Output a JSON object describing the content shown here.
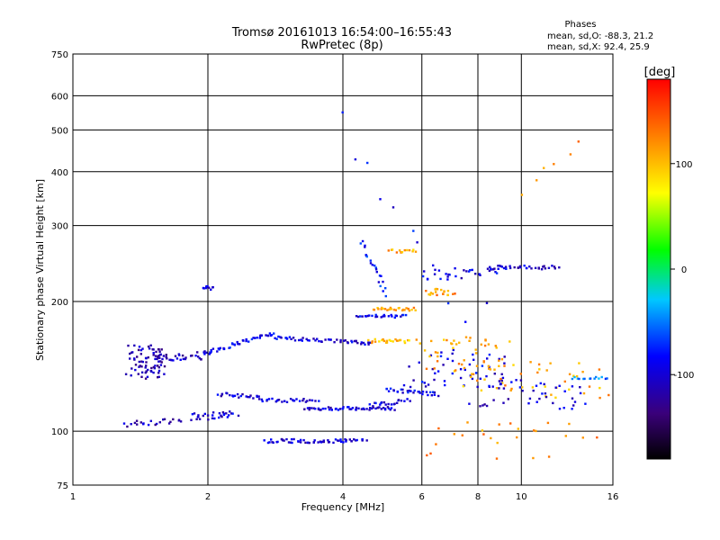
{
  "chart_data": {
    "type": "scatter",
    "title": "Tromsø 20161013 16:54:00–16:55:43",
    "subtitle": "RwPretec (8p)",
    "phases": {
      "heading": "Phases",
      "o_line": "mean, sd,O: -88.3, 21.2",
      "x_line": "mean, sd,X:  92.4, 25.9"
    },
    "xlabel": "Frequency [MHz]",
    "ylabel": "Stationary phase Virtual Height [km]",
    "x_scale": "log",
    "y_scale": "log",
    "xlim": [
      1,
      16
    ],
    "ylim": [
      75,
      750
    ],
    "x_ticks": [
      1,
      2,
      4,
      6,
      8,
      10,
      16
    ],
    "y_ticks": [
      75,
      100,
      200,
      300,
      400,
      500,
      600,
      750
    ],
    "grid": true,
    "colorbar": {
      "label": "[deg]",
      "vmin": -180,
      "vmax": 180,
      "ticks": [
        100,
        0,
        -100
      ]
    },
    "traces": [
      {
        "x": [
          1.35,
          1.6
        ],
        "y": [
          145,
          145
        ],
        "phase": -115,
        "count": 80,
        "jit_f": 0.045,
        "jit_h": 0.09
      },
      {
        "x": [
          1.3,
          1.75
        ],
        "y": [
          104,
          106
        ],
        "phase": -112,
        "count": 22,
        "jit_f": 0.02,
        "jit_h": 0.015
      },
      {
        "x": [
          1.55,
          2.0
        ],
        "y": [
          148,
          150
        ],
        "phase": -108,
        "count": 28,
        "jit_f": 0.02,
        "jit_h": 0.02
      },
      {
        "x": [
          1.85,
          2.3
        ],
        "y": [
          108,
          110
        ],
        "phase": -100,
        "count": 30,
        "jit_f": 0.02,
        "jit_h": 0.02
      },
      {
        "x": [
          1.95,
          2.05
        ],
        "y": [
          215,
          215
        ],
        "phase": -105,
        "count": 10,
        "jit_f": 0.006,
        "jit_h": 0.01
      },
      {
        "x": [
          1.95,
          2.8
        ],
        "y": [
          152,
          168
        ],
        "phase": -90,
        "count": 45,
        "jit_f": 0.012,
        "jit_h": 0.012
      },
      {
        "x": [
          2.1,
          2.6
        ],
        "y": [
          122,
          120
        ],
        "phase": -100,
        "count": 22,
        "jit_f": 0.01,
        "jit_h": 0.01
      },
      {
        "x": [
          2.6,
          3.5
        ],
        "y": [
          118,
          118
        ],
        "phase": -98,
        "count": 28,
        "jit_f": 0.01,
        "jit_h": 0.01
      },
      {
        "x": [
          2.8,
          3.8
        ],
        "y": [
          165,
          162
        ],
        "phase": -95,
        "count": 30,
        "jit_f": 0.01,
        "jit_h": 0.008
      },
      {
        "x": [
          2.7,
          4.5
        ],
        "y": [
          95,
          95
        ],
        "phase": -102,
        "count": 60,
        "jit_f": 0.012,
        "jit_h": 0.01
      },
      {
        "x": [
          3.3,
          5.2
        ],
        "y": [
          113,
          113
        ],
        "phase": -100,
        "count": 55,
        "jit_f": 0.01,
        "jit_h": 0.008
      },
      {
        "x": [
          3.9,
          4.6
        ],
        "y": [
          162,
          160
        ],
        "phase": -100,
        "count": 20,
        "jit_f": 0.008,
        "jit_h": 0.008
      },
      {
        "x": [
          4.3,
          5.5
        ],
        "y": [
          185,
          185
        ],
        "phase": -90,
        "count": 26,
        "jit_f": 0.008,
        "jit_h": 0.008
      },
      {
        "x": [
          4.6,
          5.6
        ],
        "y": [
          162,
          162
        ],
        "phase": 100,
        "count": 24,
        "jit_f": 0.01,
        "jit_h": 0.01
      },
      {
        "x": [
          4.7,
          5.8
        ],
        "y": [
          192,
          192
        ],
        "phase": 115,
        "count": 26,
        "jit_f": 0.01,
        "jit_h": 0.008
      },
      {
        "x": [
          5.1,
          5.8
        ],
        "y": [
          262,
          262
        ],
        "phase": 110,
        "count": 14,
        "jit_f": 0.01,
        "jit_h": 0.008
      },
      {
        "x": [
          4.4,
          5.0
        ],
        "y": [
          275,
          210
        ],
        "phase": -80,
        "count": 22,
        "jit_f": 0.01,
        "jit_h": 0.02
      },
      {
        "x": [
          4.6,
          5.6
        ],
        "y": [
          115,
          118
        ],
        "phase": -95,
        "count": 20,
        "jit_f": 0.01,
        "jit_h": 0.01
      },
      {
        "x": [
          5.0,
          6.5
        ],
        "y": [
          125,
          122
        ],
        "phase": -90,
        "count": 30,
        "jit_f": 0.01,
        "jit_h": 0.01
      },
      {
        "x": [
          6.2,
          7.0
        ],
        "y": [
          210,
          210
        ],
        "phase": 118,
        "count": 20,
        "jit_f": 0.015,
        "jit_h": 0.02
      },
      {
        "x": [
          6.0,
          9.0
        ],
        "y": [
          230,
          235
        ],
        "phase": -95,
        "count": 30,
        "jit_f": 0.02,
        "jit_h": 0.03
      },
      {
        "x": [
          8.5,
          12.0
        ],
        "y": [
          240,
          240
        ],
        "phase": -100,
        "count": 34,
        "jit_f": 0.012,
        "jit_h": 0.01
      },
      {
        "x": [
          5.6,
          9.5
        ],
        "y": [
          140,
          140
        ],
        "phase": -95,
        "count": 50,
        "jit_f": 0.05,
        "jit_h": 0.1
      },
      {
        "x": [
          6.0,
          9.0
        ],
        "y": [
          150,
          150
        ],
        "phase": 110,
        "count": 45,
        "jit_f": 0.05,
        "jit_h": 0.1
      },
      {
        "x": [
          7.5,
          15.0
        ],
        "y": [
          132,
          132
        ],
        "phase": 110,
        "count": 45,
        "jit_f": 0.05,
        "jit_h": 0.1
      },
      {
        "x": [
          8.0,
          14.0
        ],
        "y": [
          122,
          122
        ],
        "phase": -100,
        "count": 45,
        "jit_f": 0.05,
        "jit_h": 0.08
      },
      {
        "x": [
          13.0,
          15.5
        ],
        "y": [
          133,
          133
        ],
        "phase": -55,
        "count": 14,
        "jit_f": 0.008,
        "jit_h": 0.006
      },
      {
        "x": [
          6.0,
          14.0
        ],
        "y": [
          95,
          95
        ],
        "phase": 120,
        "count": 25,
        "jit_f": 0.08,
        "jit_h": 0.1
      },
      {
        "x": [
          4.0,
          8.0
        ],
        "y": [
          500,
          180
        ],
        "phase": -90,
        "count": 12,
        "jit_f": 0.05,
        "jit_h": 0.1
      },
      {
        "x": [
          10.0,
          13.5
        ],
        "y": [
          360,
          470
        ],
        "phase": 125,
        "count": 6,
        "jit_f": 0.02,
        "jit_h": 0.02
      }
    ]
  }
}
